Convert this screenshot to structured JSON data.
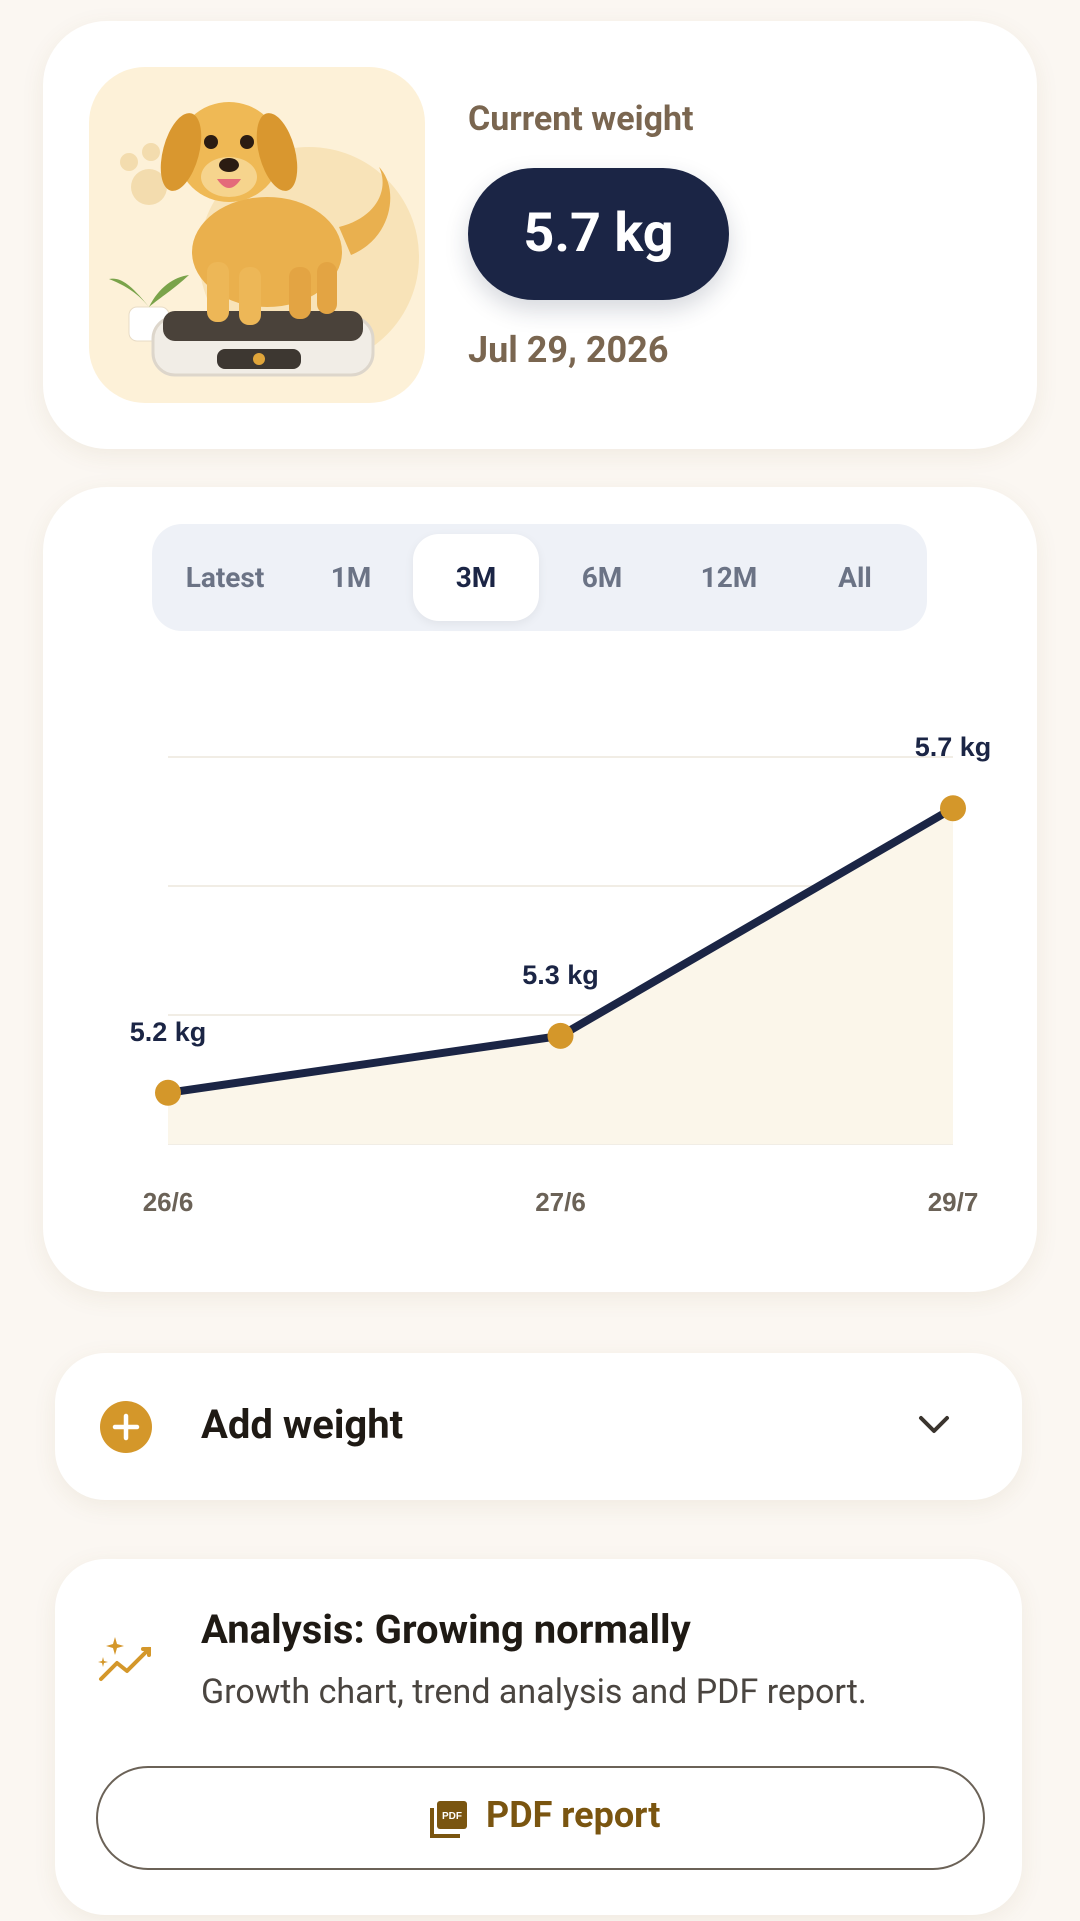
{
  "header": {
    "title": "Current weight",
    "weight": "5.7 kg",
    "date": "Jul 29, 2026"
  },
  "tabs": [
    "Latest",
    "1M",
    "3M",
    "6M",
    "12M",
    "All"
  ],
  "chart_data": {
    "type": "line",
    "categories": [
      "26/6",
      "27/6",
      "29/7"
    ],
    "values": [
      5.2,
      5.3,
      5.7
    ],
    "value_labels": [
      "5.2 kg",
      "5.3 kg",
      "5.7 kg"
    ],
    "ylim": [
      5.11,
      5.79
    ],
    "color": "#1b2545",
    "marker_color": "#d4972a",
    "grid": true
  },
  "add_weight": {
    "label": "Add weight"
  },
  "analysis": {
    "title": "Analysis: Growing normally",
    "description": "Growth chart, trend analysis and PDF report.",
    "button": "PDF report"
  }
}
